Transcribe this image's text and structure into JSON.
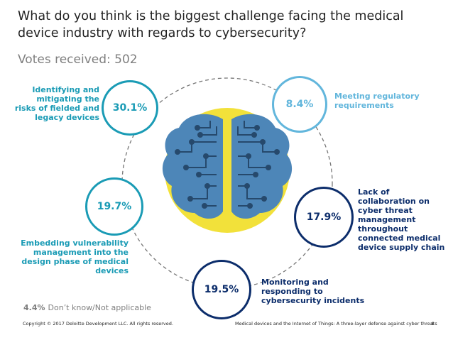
{
  "title": "What do you think is the biggest challenge facing the medical device industry with regards to cybersecurity?",
  "votes": {
    "label": "Votes received:",
    "count": "502"
  },
  "colors": {
    "teal": "#1a9bb5",
    "light_blue": "#62b6dc",
    "navy": "#0c2d6b",
    "dash": "#777777",
    "yellow": "#f2e13a",
    "brain": "#4d86b8",
    "brain_dark": "#26496c"
  },
  "chart_data": {
    "type": "bubble",
    "title": "What do you think is the biggest challenge facing the medical device industry with regards to cybersecurity?",
    "total_votes": 502,
    "categories": [
      {
        "label": "Identifying and mitigating the risks of fielded and legacy devices",
        "value": 30.1,
        "display": "30.1%"
      },
      {
        "label": "Meeting regulatory requirements",
        "value": 8.4,
        "display": "8.4%"
      },
      {
        "label": "Embedding vulnerability management into the design phase of medical devices",
        "value": 19.7,
        "display": "19.7%"
      },
      {
        "label": "Lack of collaboration on cyber threat management throughout connected medical device supply chain",
        "value": 17.9,
        "display": "17.9%"
      },
      {
        "label": "Monitoring and responding to cybersecurity incidents",
        "value": 19.5,
        "display": "19.5%"
      },
      {
        "label": "Don’t know/Not applicable",
        "value": 4.4,
        "display": "4.4%"
      }
    ]
  },
  "labels": {
    "legacy": [
      "Identifying and",
      "mitigating the",
      "risks of fielded and",
      "legacy devices"
    ],
    "regulatory": [
      "Meeting regulatory",
      "requirements"
    ],
    "embedding": [
      "Embedding vulnerability",
      "management into the",
      "design phase of medical",
      "devices"
    ],
    "collaboration": [
      "Lack of",
      "collaboration on",
      "cyber threat",
      "management",
      "throughout",
      "connected medical",
      "device supply chain"
    ],
    "monitoring": [
      "Monitoring and",
      "responding to",
      "cybersecurity incidents"
    ]
  },
  "footer": {
    "copyright": "Copyright © 2017 Deloitte Development LLC. All rights reserved.",
    "source": "Medical devices and the Internet of Things: A three-layer defense against cyber threats",
    "page": "4"
  }
}
